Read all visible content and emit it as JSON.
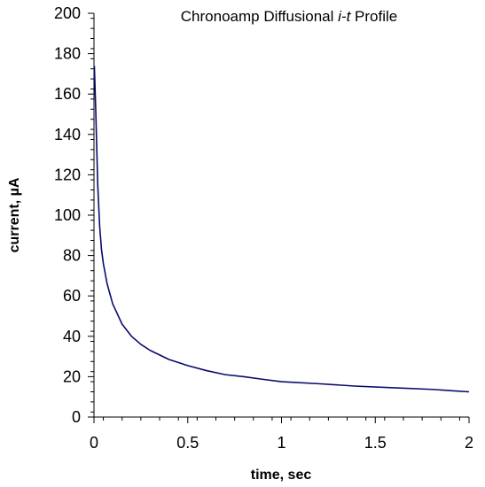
{
  "chart_data": {
    "type": "line",
    "title": "Chronoamp Diffusional ",
    "title_italic": "i-t",
    "title_suffix": " Profile",
    "xlabel": "time, sec",
    "ylabel": "current, µA",
    "xlim": [
      0,
      2
    ],
    "ylim": [
      0,
      200
    ],
    "x_ticks": [
      0,
      0.5,
      1,
      1.5,
      2
    ],
    "x_tick_labels": [
      "0",
      "0.5",
      "1",
      "1.5",
      "2"
    ],
    "y_ticks": [
      0,
      20,
      40,
      60,
      80,
      100,
      120,
      140,
      160,
      180,
      200
    ],
    "y_tick_labels": [
      "0",
      "20",
      "40",
      "60",
      "80",
      "100",
      "120",
      "140",
      "160",
      "180",
      "200"
    ],
    "grid": false,
    "legend": "none",
    "line_color": "#0a0a6e",
    "series": [
      {
        "x": [
          0.002,
          0.01,
          0.02,
          0.03,
          0.04,
          0.05,
          0.07,
          0.1,
          0.15,
          0.2,
          0.25,
          0.3,
          0.4,
          0.5,
          0.6,
          0.7,
          0.8,
          0.9,
          1.0,
          1.2,
          1.4,
          1.6,
          1.8,
          2.0
        ],
        "values": [
          174,
          150,
          115,
          95,
          83,
          76,
          66,
          56,
          46,
          40,
          36,
          33,
          28.5,
          25.5,
          23,
          21,
          20,
          18.7,
          17.5,
          16.5,
          15.3,
          14.5,
          13.7,
          12.5
        ]
      }
    ]
  }
}
